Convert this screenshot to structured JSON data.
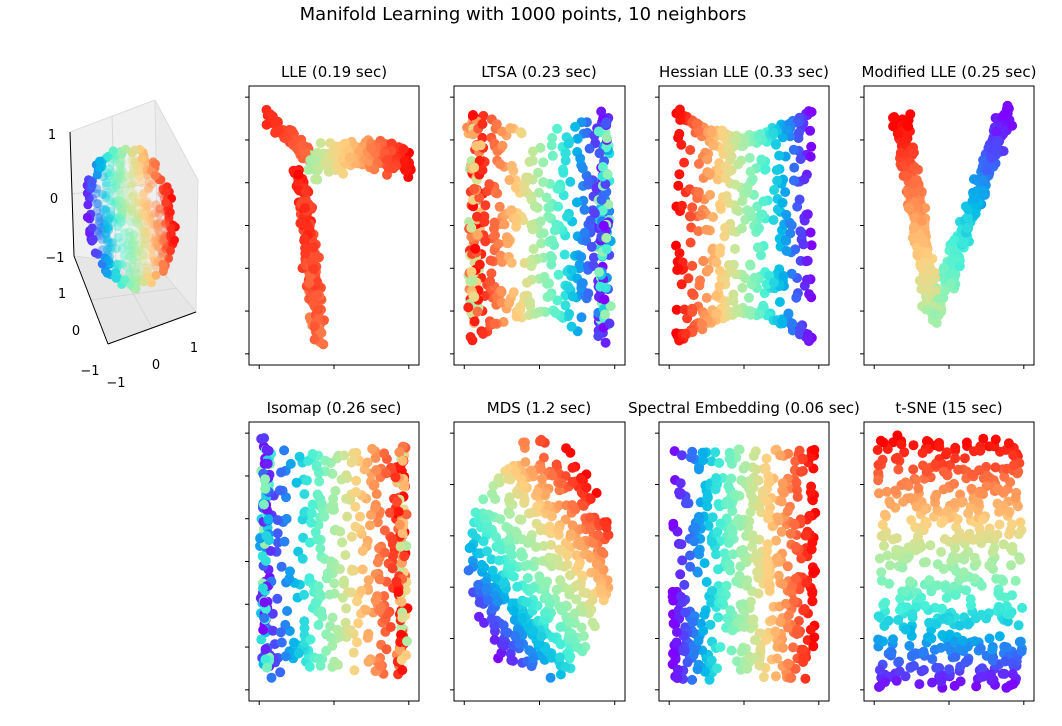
{
  "figure": {
    "title": "Manifold Learning with 1000 points, 10 neighbors"
  },
  "colormap": [
    "#8000ff",
    "#3f5efb",
    "#02b8e8",
    "#45f0d8",
    "#8cf2b6",
    "#c4e89a",
    "#ffd080",
    "#ff9a5a",
    "#ff5030",
    "#ff0000"
  ],
  "chart_data": [
    {
      "type": "scatter",
      "projection": "3d",
      "title": "",
      "shape": "sphere-cap",
      "xticks": [
        "−1",
        "0",
        "1"
      ],
      "yticks": [
        "−1",
        "0",
        "1"
      ],
      "zticks": [
        "−1",
        "0",
        "1"
      ],
      "xlim": [
        -1,
        1
      ],
      "ylim": [
        -1,
        1
      ],
      "zlim": [
        -1,
        1
      ]
    },
    {
      "type": "scatter",
      "title": "LLE (0.19 sec)",
      "shape": "lle",
      "xticks": 3,
      "yticks": 7
    },
    {
      "type": "scatter",
      "title": "LTSA (0.23 sec)",
      "shape": "ltsa",
      "xticks": 3,
      "yticks": 7
    },
    {
      "type": "scatter",
      "title": "Hessian LLE (0.33 sec)",
      "shape": "hessian",
      "xticks": 3,
      "yticks": 7
    },
    {
      "type": "scatter",
      "title": "Modified LLE (0.25 sec)",
      "shape": "modified",
      "xticks": 3,
      "yticks": 7
    },
    {
      "type": "scatter",
      "title": "Isomap (0.26 sec)",
      "shape": "isomap",
      "xticks": 3,
      "yticks": 7
    },
    {
      "type": "scatter",
      "title": "MDS (1.2 sec)",
      "shape": "mds",
      "xticks": 3,
      "yticks": 6
    },
    {
      "type": "scatter",
      "title": "Spectral Embedding (0.06 sec)",
      "shape": "spectral",
      "xticks": 3,
      "yticks": 6
    },
    {
      "type": "scatter",
      "title": "t-SNE (15 sec)",
      "shape": "tsne",
      "xticks": 3,
      "yticks": 6
    }
  ]
}
